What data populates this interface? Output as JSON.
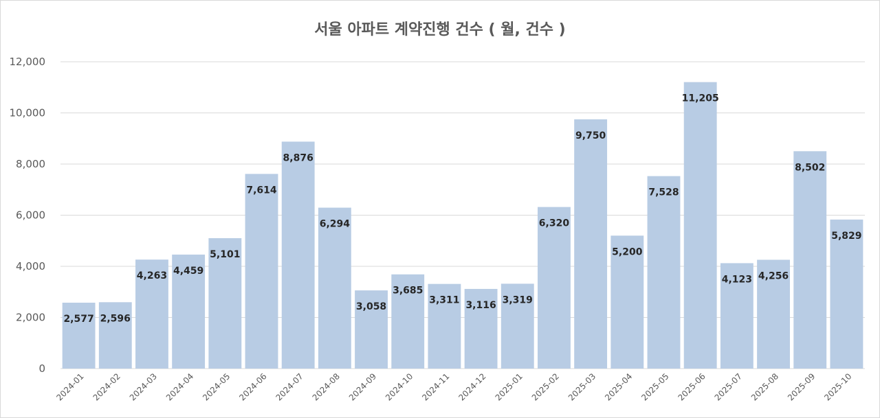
{
  "chart_data": {
    "type": "bar",
    "title": "서울 아파트 계약진행 건수 ( 월, 건수 )",
    "xlabel": "",
    "ylabel": "",
    "ylim": [
      0,
      12000
    ],
    "yticks": [
      0,
      2000,
      4000,
      6000,
      8000,
      10000,
      12000
    ],
    "ytick_labels": [
      "0",
      "2,000",
      "4,000",
      "6,000",
      "8,000",
      "10,000",
      "12,000"
    ],
    "grid": true,
    "legend": "none",
    "bar_color": "#b8cce4",
    "categories": [
      "2024-01",
      "2024-02",
      "2024-03",
      "2024-04",
      "2024-05",
      "2024-06",
      "2024-07",
      "2024-08",
      "2024-09",
      "2024-10",
      "2024-11",
      "2024-12",
      "2025-01",
      "2025-02",
      "2025-03",
      "2025-04",
      "2025-05",
      "2025-06",
      "2025-07",
      "2025-08",
      "2025-09",
      "2025-10"
    ],
    "values": [
      2577,
      2596,
      4263,
      4459,
      5101,
      7614,
      8876,
      6294,
      3058,
      3685,
      3311,
      3116,
      3319,
      6320,
      9750,
      5200,
      7528,
      11205,
      4123,
      4256,
      8502,
      5829
    ],
    "value_labels": [
      "2,577",
      "2,596",
      "4,263",
      "4,459",
      "5,101",
      "7,614",
      "8,876",
      "6,294",
      "3,058",
      "3,685",
      "3,311",
      "3,116",
      "3,319",
      "6,320",
      "9,750",
      "5,200",
      "7,528",
      "11,205",
      "4,123",
      "4,256",
      "8,502",
      "5,829"
    ]
  }
}
